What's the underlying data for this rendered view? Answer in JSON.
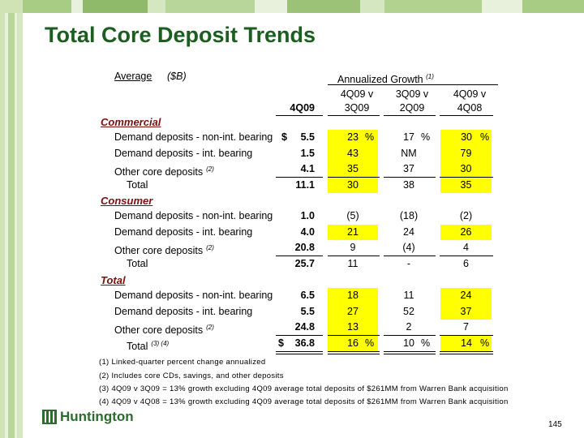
{
  "title": "Total Core Deposit Trends",
  "header": {
    "average": "Average",
    "unit": "($B)",
    "annualized": "Annualized Growth",
    "annualized_note": "(1)",
    "col_top": [
      "4Q09 v",
      "3Q09 v",
      "4Q09 v"
    ],
    "col_bottom": [
      "4Q09",
      "3Q09",
      "2Q09",
      "4Q08"
    ]
  },
  "sections": [
    {
      "name": "Commercial",
      "rows": [
        {
          "label": "Demand deposits - non-int. bearing",
          "note": "",
          "dollar": "$",
          "value": "5.5",
          "g1": "23",
          "g2": "17",
          "g3": "30",
          "pct": true
        },
        {
          "label": "Demand deposits - int. bearing",
          "note": "",
          "dollar": "",
          "value": "1.5",
          "g1": "43",
          "g2": "NM",
          "g3": "79"
        },
        {
          "label": "Other core deposits",
          "note": "(2)",
          "dollar": "",
          "value": "4.1",
          "g1": "35",
          "g2": "37",
          "g3": "30"
        },
        {
          "label": "Total",
          "note": "",
          "dollar": "",
          "value": "11.1",
          "g1": "30",
          "g2": "38",
          "g3": "35"
        }
      ]
    },
    {
      "name": "Consumer",
      "rows": [
        {
          "label": "Demand deposits - non-int. bearing",
          "note": "",
          "dollar": "",
          "value": "1.0",
          "g1": "(5)",
          "g2": "(18)",
          "g3": "(2)"
        },
        {
          "label": "Demand deposits - int. bearing",
          "note": "",
          "dollar": "",
          "value": "4.0",
          "g1": "21",
          "g2": "24",
          "g3": "26"
        },
        {
          "label": "Other core deposits",
          "note": "(2)",
          "dollar": "",
          "value": "20.8",
          "g1": "9",
          "g2": "(4)",
          "g3": "4"
        },
        {
          "label": "Total",
          "note": "",
          "dollar": "",
          "value": "25.7",
          "g1": "11",
          "g2": "-",
          "g3": "6"
        }
      ]
    },
    {
      "name": "Total",
      "rows": [
        {
          "label": "Demand deposits - non-int. bearing",
          "note": "",
          "dollar": "",
          "value": "6.5",
          "g1": "18",
          "g2": "11",
          "g3": "24"
        },
        {
          "label": "Demand deposits - int. bearing",
          "note": "",
          "dollar": "",
          "value": "5.5",
          "g1": "27",
          "g2": "52",
          "g3": "37"
        },
        {
          "label": "Other core deposits",
          "note": "(2)",
          "dollar": "",
          "value": "24.8",
          "g1": "13",
          "g2": "2",
          "g3": "7"
        },
        {
          "label": "Total",
          "note": "(3) (4)",
          "dollar": "$",
          "value": "36.8",
          "g1": "16",
          "g2": "10",
          "g3": "14",
          "pct": true
        }
      ]
    }
  ],
  "pct_symbol": "%",
  "footnotes": [
    "(1)  Linked-quarter percent change annualized",
    "(2)  Includes core CDs, savings, and other deposits",
    "(3) 4Q09 v 3Q09 = 13% growth excluding 4Q09 average total deposits of $261MM from Warren Bank acquisition",
    "(4) 4Q09 v 4Q08 = 13% growth excluding 4Q09 average total deposits of $261MM from Warren Bank acquisition"
  ],
  "logo_text": "Huntington",
  "page_number": "145",
  "colors": {
    "title": "#1b5e20",
    "section": "#7a1010",
    "highlight": "#ffff00"
  }
}
